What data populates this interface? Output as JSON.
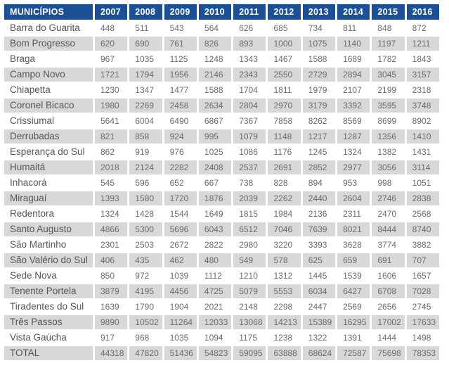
{
  "header": {
    "municipality_label": "MUNICÍPIOS"
  },
  "colors": {
    "header_bg": "#1B4F96",
    "header_text": "#FFFFFF",
    "stripe_bg": "#D8D8D8",
    "row_bg": "#FFFFFF",
    "name_text": "#54555A",
    "value_text": "#6A6B6E"
  },
  "chart_data": {
    "type": "table",
    "title": "Population by municipality per year",
    "categories": [
      "2007",
      "2008",
      "2009",
      "2010",
      "2011",
      "2012",
      "2013",
      "2014",
      "2015",
      "2016"
    ],
    "series": [
      {
        "name": "Barra do Guarita",
        "values": [
          448,
          511,
          543,
          564,
          626,
          685,
          734,
          811,
          848,
          872
        ]
      },
      {
        "name": "Bom Progresso",
        "values": [
          620,
          690,
          761,
          826,
          893,
          1000,
          1075,
          1140,
          1197,
          1211
        ]
      },
      {
        "name": "Braga",
        "values": [
          967,
          1035,
          1125,
          1248,
          1343,
          1467,
          1588,
          1689,
          1782,
          1843
        ]
      },
      {
        "name": "Campo Novo",
        "values": [
          1721,
          1794,
          1956,
          2146,
          2343,
          2550,
          2729,
          2894,
          3045,
          3157
        ]
      },
      {
        "name": "Chiapetta",
        "values": [
          1230,
          1347,
          1477,
          1588,
          1704,
          1811,
          1979,
          2107,
          2199,
          2318
        ]
      },
      {
        "name": "Coronel Bicaco",
        "values": [
          1980,
          2269,
          2458,
          2634,
          2804,
          2970,
          3179,
          3392,
          3595,
          3748
        ]
      },
      {
        "name": "Crissiumal",
        "values": [
          5641,
          6004,
          6490,
          6867,
          7367,
          7858,
          8262,
          8569,
          8699,
          8902
        ]
      },
      {
        "name": "Derrubadas",
        "values": [
          821,
          858,
          924,
          995,
          1079,
          1148,
          1217,
          1287,
          1356,
          1410
        ]
      },
      {
        "name": "Esperança do Sul",
        "values": [
          862,
          919,
          976,
          1025,
          1086,
          1176,
          1245,
          1324,
          1382,
          1431
        ]
      },
      {
        "name": "Humaitá",
        "values": [
          2018,
          2124,
          2282,
          2408,
          2537,
          2691,
          2852,
          2977,
          3056,
          3114
        ]
      },
      {
        "name": "Inhacorá",
        "values": [
          545,
          596,
          652,
          667,
          738,
          828,
          894,
          953,
          998,
          1051
        ]
      },
      {
        "name": "Miraguaí",
        "values": [
          1393,
          1580,
          1720,
          1876,
          2039,
          2262,
          2440,
          2604,
          2746,
          2838
        ]
      },
      {
        "name": "Redentora",
        "values": [
          1324,
          1428,
          1544,
          1649,
          1815,
          1984,
          2136,
          2311,
          2470,
          2568
        ]
      },
      {
        "name": "Santo Augusto",
        "values": [
          4866,
          5300,
          5696,
          6043,
          6512,
          7046,
          7639,
          8021,
          8444,
          8740
        ]
      },
      {
        "name": "São Martinho",
        "values": [
          2301,
          2503,
          2672,
          2822,
          2980,
          3220,
          3393,
          3628,
          3774,
          3882
        ]
      },
      {
        "name": "São Valério do Sul",
        "values": [
          406,
          435,
          462,
          480,
          549,
          578,
          625,
          659,
          691,
          707
        ]
      },
      {
        "name": "Sede Nova",
        "values": [
          850,
          972,
          1039,
          1112,
          1210,
          1312,
          1445,
          1539,
          1606,
          1657
        ]
      },
      {
        "name": "Tenente Portela",
        "values": [
          3879,
          4195,
          4456,
          4725,
          5079,
          5553,
          6034,
          6427,
          6708,
          7028
        ]
      },
      {
        "name": "Tiradentes do Sul",
        "values": [
          1639,
          1790,
          1904,
          2021,
          2148,
          2298,
          2447,
          2569,
          2656,
          2745
        ]
      },
      {
        "name": "Três Passos",
        "values": [
          9890,
          10502,
          11264,
          12033,
          13068,
          14213,
          15389,
          16295,
          17002,
          17633
        ]
      },
      {
        "name": "Vista Gaúcha",
        "values": [
          917,
          968,
          1035,
          1094,
          1175,
          1238,
          1322,
          1391,
          1444,
          1498
        ]
      }
    ],
    "total": {
      "name": "TOTAL",
      "values": [
        44318,
        47820,
        51436,
        54823,
        59095,
        63888,
        68624,
        72587,
        75698,
        78353
      ]
    },
    "layout": {
      "striped_rows": true,
      "header_position": "top",
      "first_column": "municipality names"
    }
  }
}
